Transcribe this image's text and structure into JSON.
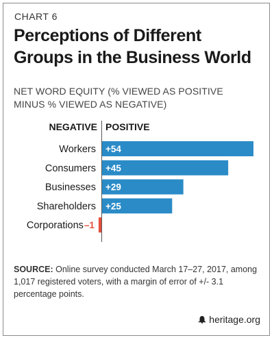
{
  "header": {
    "kicker": "CHART 6",
    "title": "Perceptions of Different Groups in the Business World",
    "subtitle": "NET WORD EQUITY (% VIEWED AS POSITIVE MINUS % VIEWED AS NEGATIVE)"
  },
  "chart_data": {
    "type": "bar",
    "orientation": "horizontal",
    "legend_left": "NEGATIVE",
    "legend_right": "POSITIVE",
    "categories": [
      "Workers",
      "Consumers",
      "Businesses",
      "Shareholders",
      "Corporations"
    ],
    "values": [
      54,
      45,
      29,
      25,
      -1
    ],
    "value_labels": [
      "+54",
      "+45",
      "+29",
      "+25",
      "–1"
    ],
    "xlim": [
      0,
      54
    ],
    "colors": {
      "positive": "#2a8bc7",
      "negative": "#e5503b"
    }
  },
  "footer": {
    "source_label": "SOURCE:",
    "source_text": " Online survey conducted March 17–27, 2017, among 1,017 registered voters, with a margin of error of +/- 3.1 percentage points.",
    "brand": "heritage.org"
  }
}
